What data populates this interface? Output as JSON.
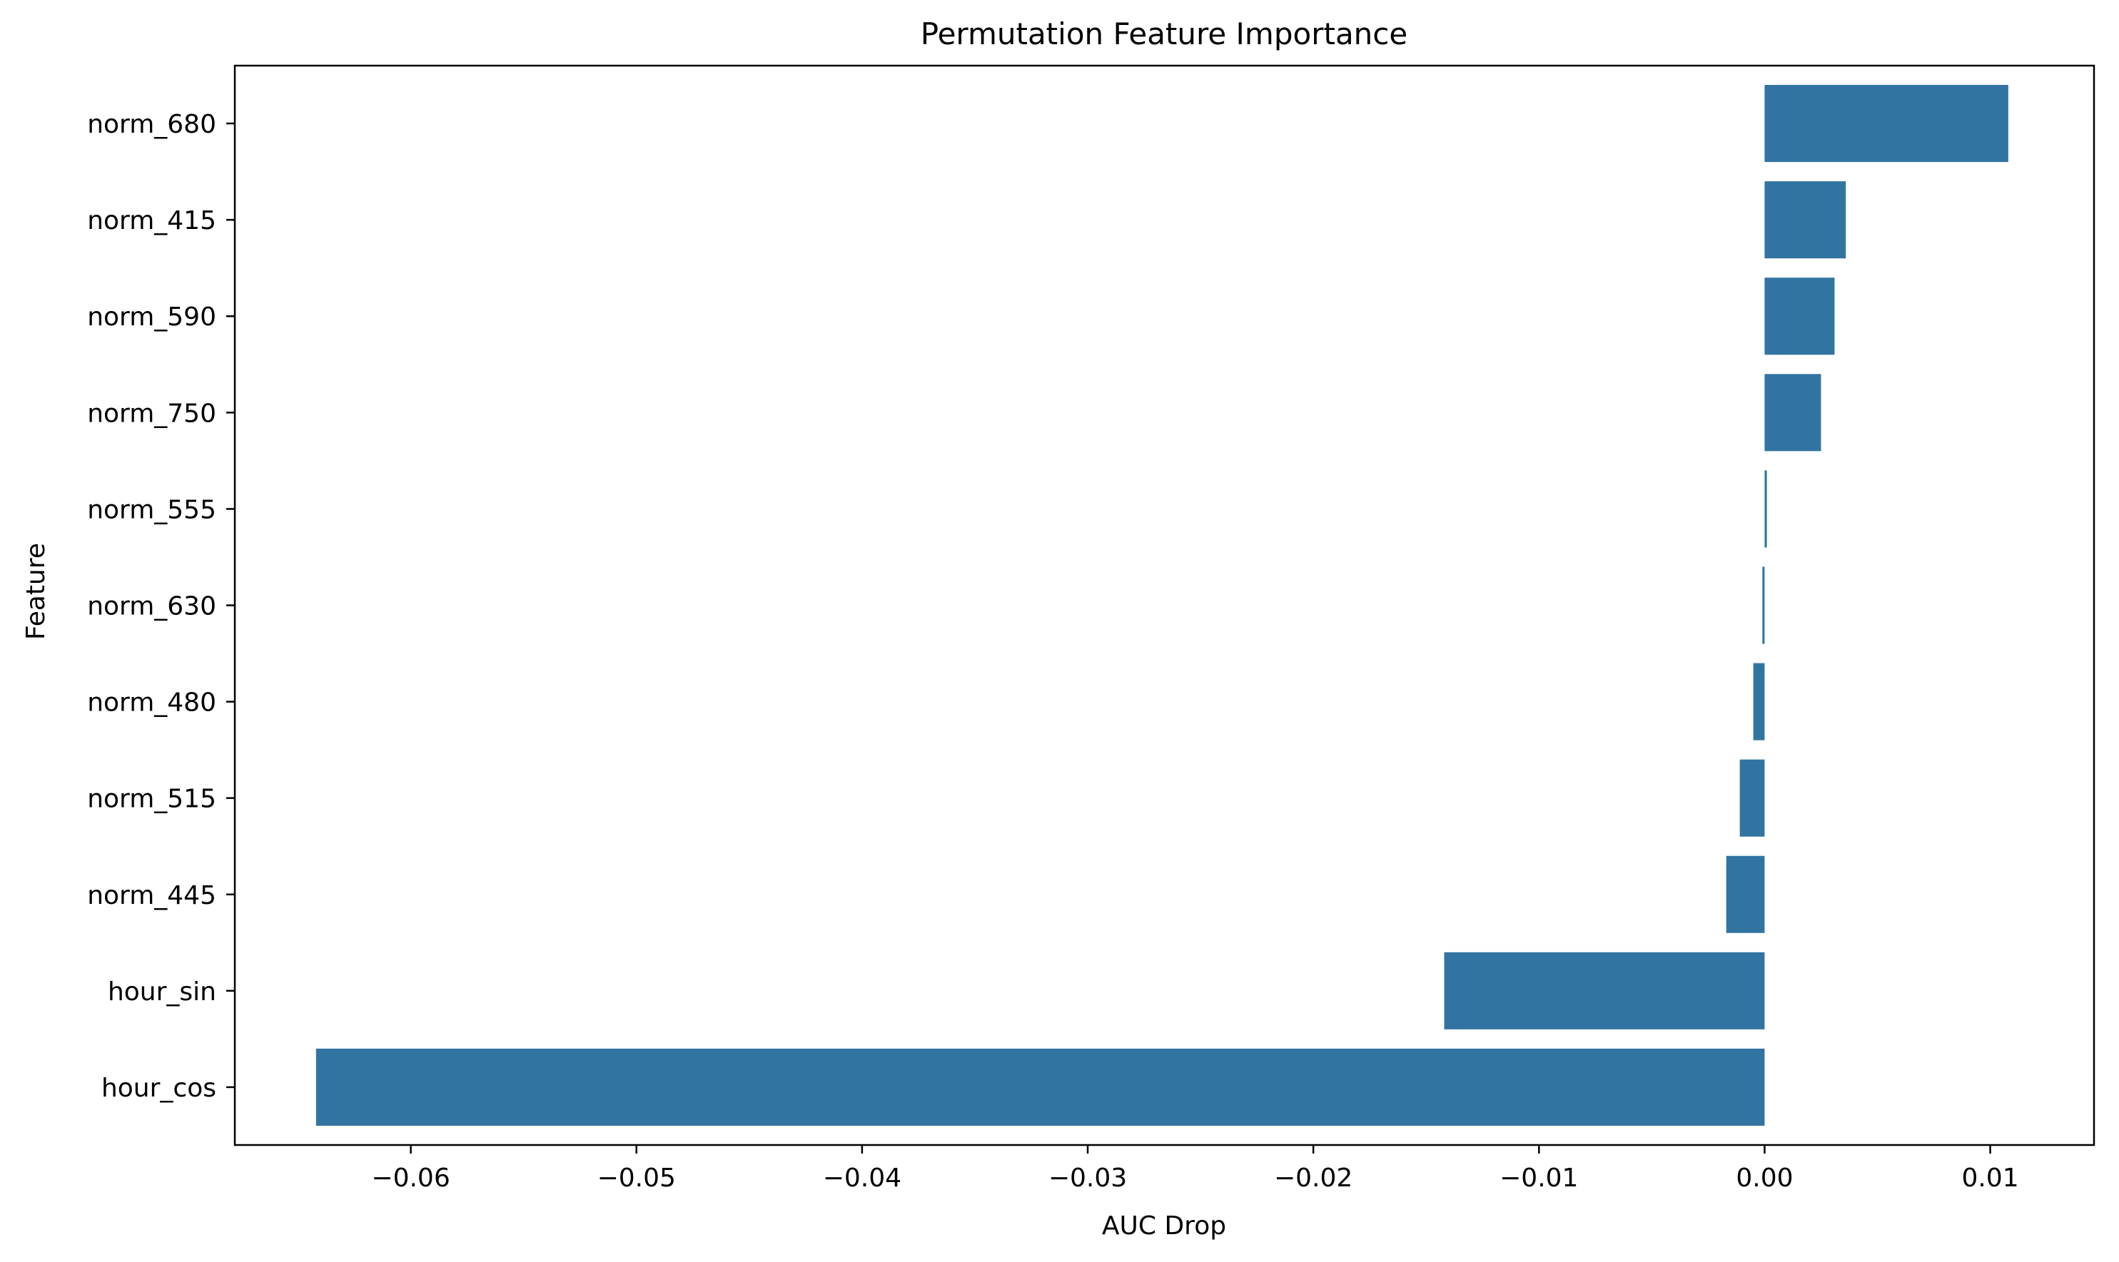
{
  "chart_data": {
    "type": "bar",
    "orientation": "horizontal",
    "title": "Permutation Feature Importance",
    "xlabel": "AUC Drop",
    "ylabel": "Feature",
    "categories": [
      "norm_680",
      "norm_415",
      "norm_590",
      "norm_750",
      "norm_555",
      "norm_630",
      "norm_480",
      "norm_515",
      "norm_445",
      "hour_sin",
      "hour_cos"
    ],
    "values": [
      0.0108,
      0.0036,
      0.0031,
      0.0025,
      0.0001,
      -0.0001,
      -0.0005,
      -0.0011,
      -0.0017,
      -0.0142,
      -0.0642
    ],
    "xlim": [
      -0.0678,
      0.0146
    ],
    "xticks": [
      -0.06,
      -0.05,
      -0.04,
      -0.03,
      -0.02,
      -0.01,
      0.0,
      0.01
    ],
    "xtick_labels": [
      "−0.06",
      "−0.05",
      "−0.04",
      "−0.03",
      "−0.02",
      "−0.01",
      "0.00",
      "0.01"
    ],
    "grid": false,
    "legend": "none",
    "bar_color": "#3274a1"
  }
}
